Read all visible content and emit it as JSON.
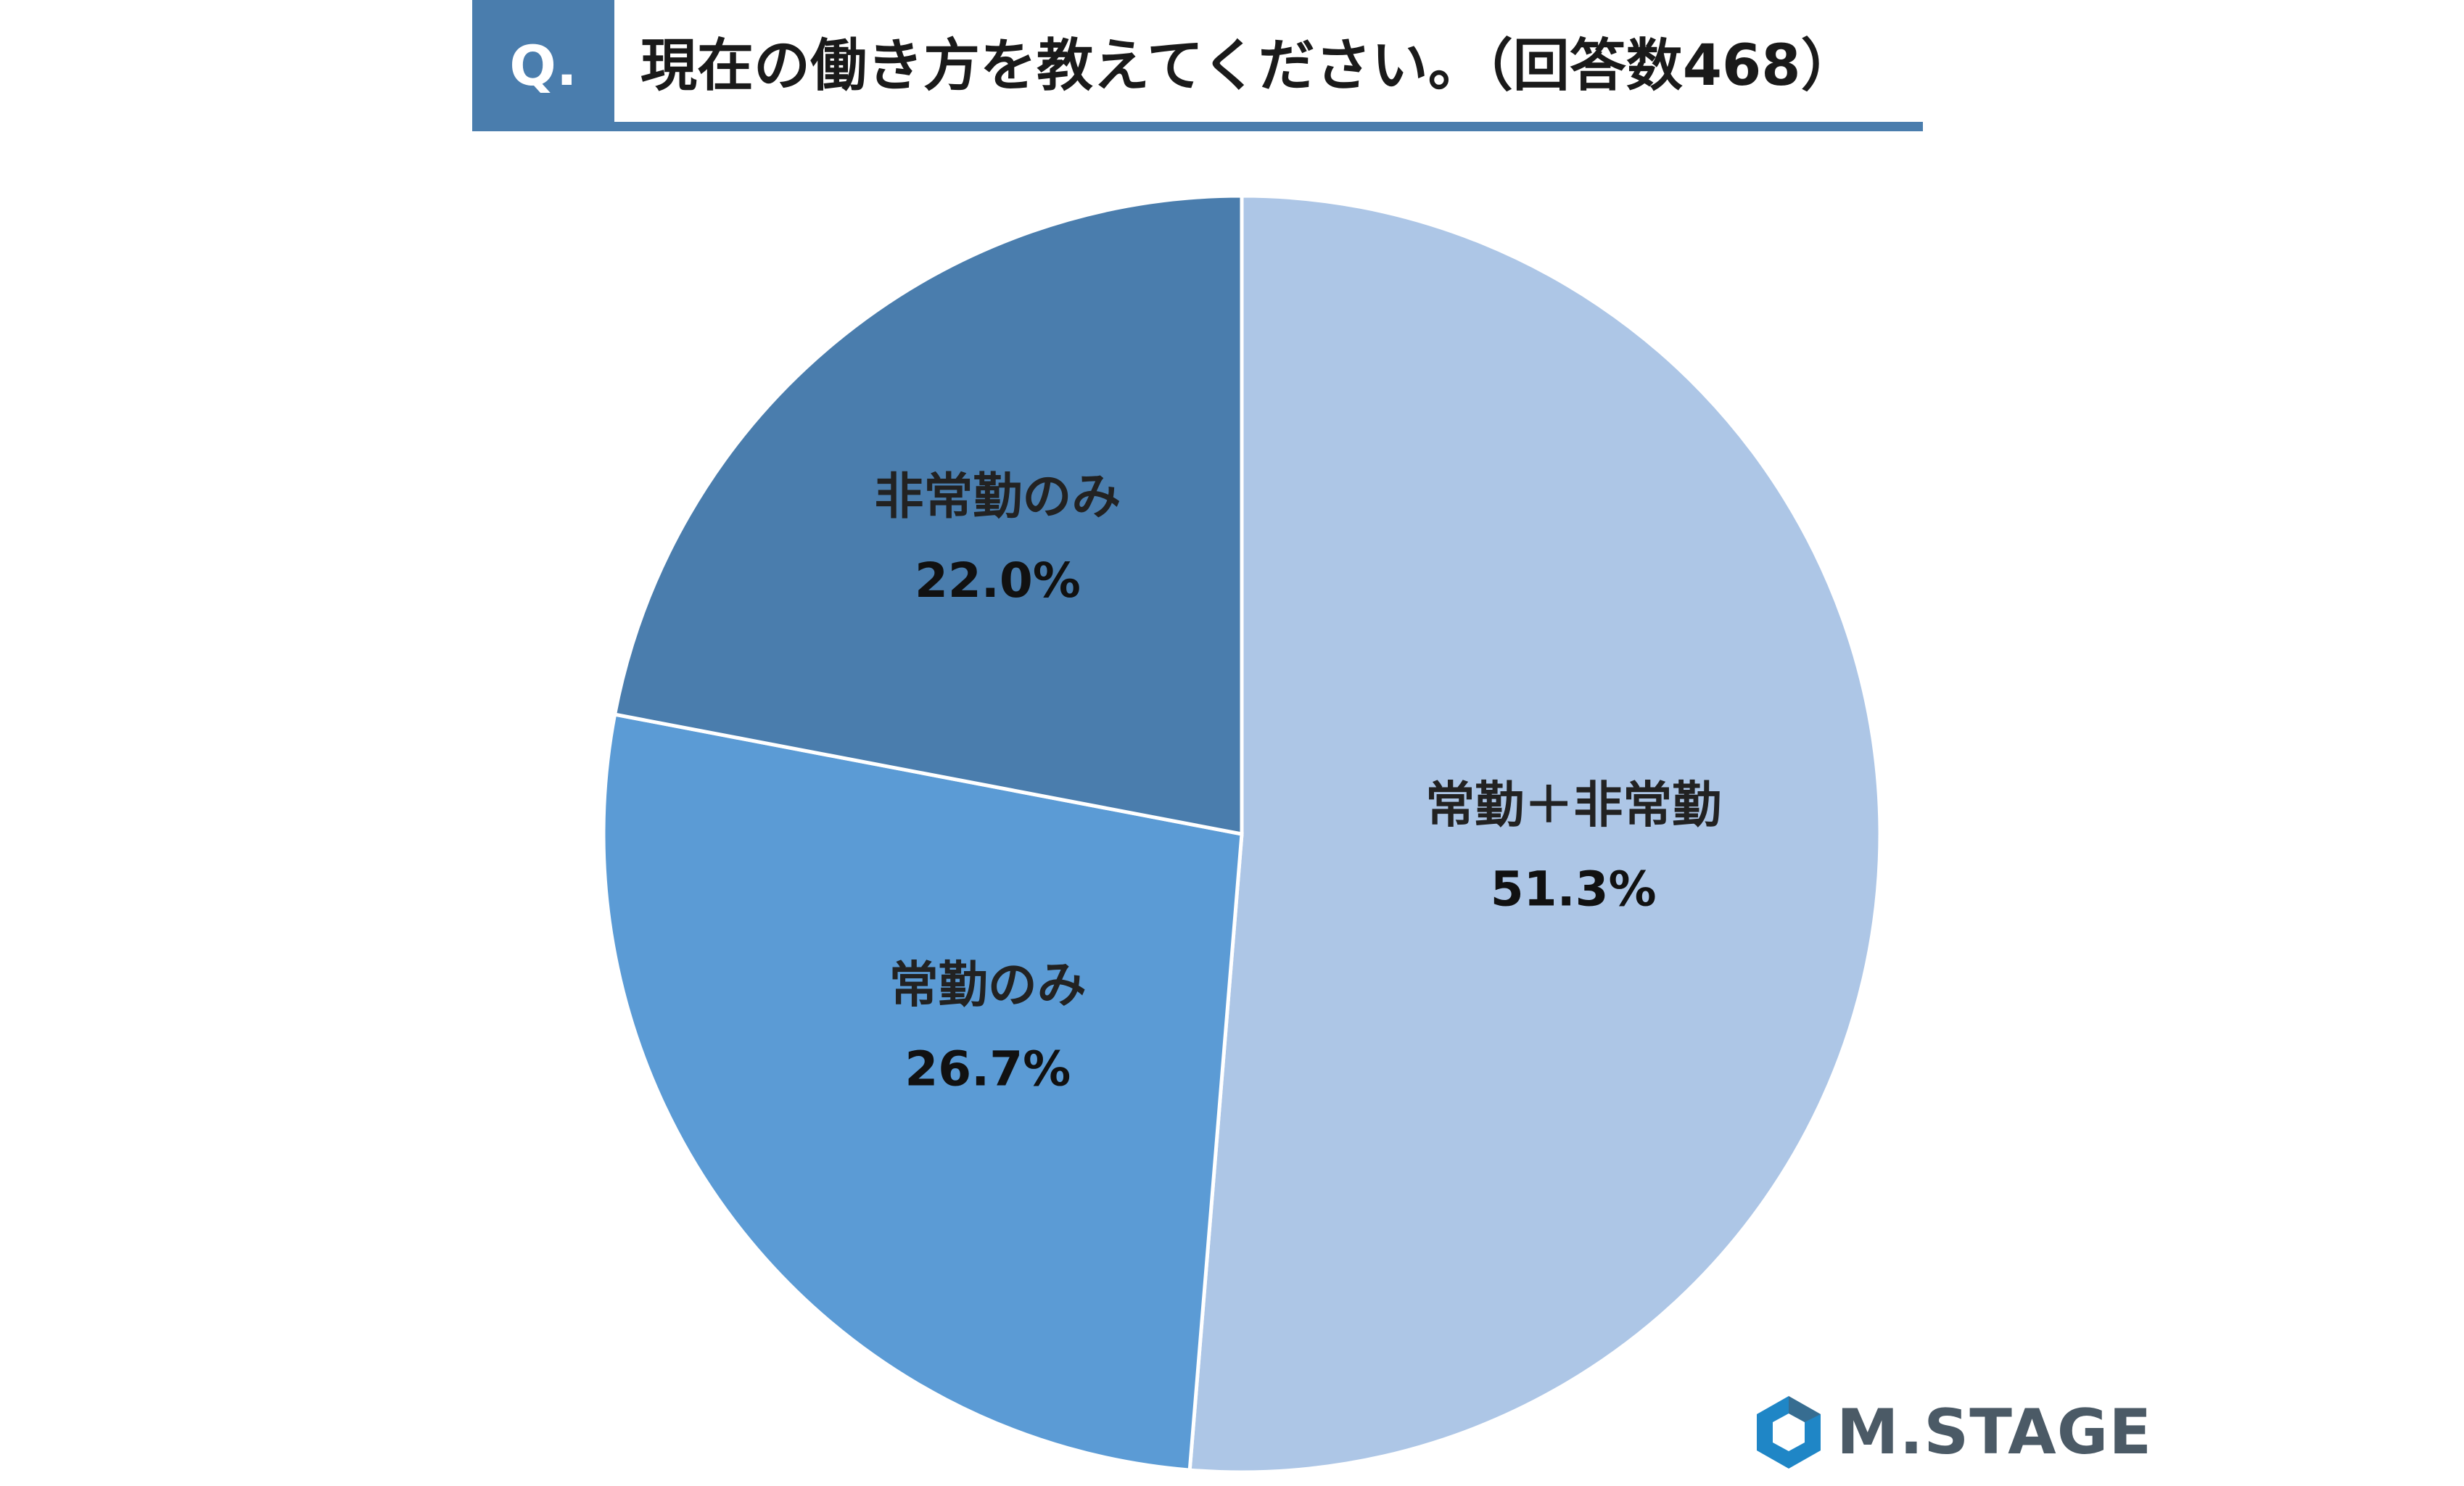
{
  "header": {
    "badge": "Q.",
    "question": "現在の働き方を教えてください。（回答数468）",
    "accent_color": "#4a7dad"
  },
  "chart_data": {
    "type": "pie",
    "start_angle": "12 o'clock",
    "direction": "clockwise",
    "slices": [
      {
        "label": "常勤＋非常勤",
        "value": 51.3,
        "display": "51.3%",
        "color": "#adc6e6"
      },
      {
        "label": "常勤のみ",
        "value": 26.7,
        "display": "26.7%",
        "color": "#5b9bd5"
      },
      {
        "label": "非常勤のみ",
        "value": 22.0,
        "display": "22.0%",
        "color": "#4a7dad"
      }
    ]
  },
  "logo": {
    "name": "M.STAGE",
    "icon": "hexagon-logo-icon",
    "colors": [
      "#1f86c6",
      "#4b5a66"
    ]
  }
}
